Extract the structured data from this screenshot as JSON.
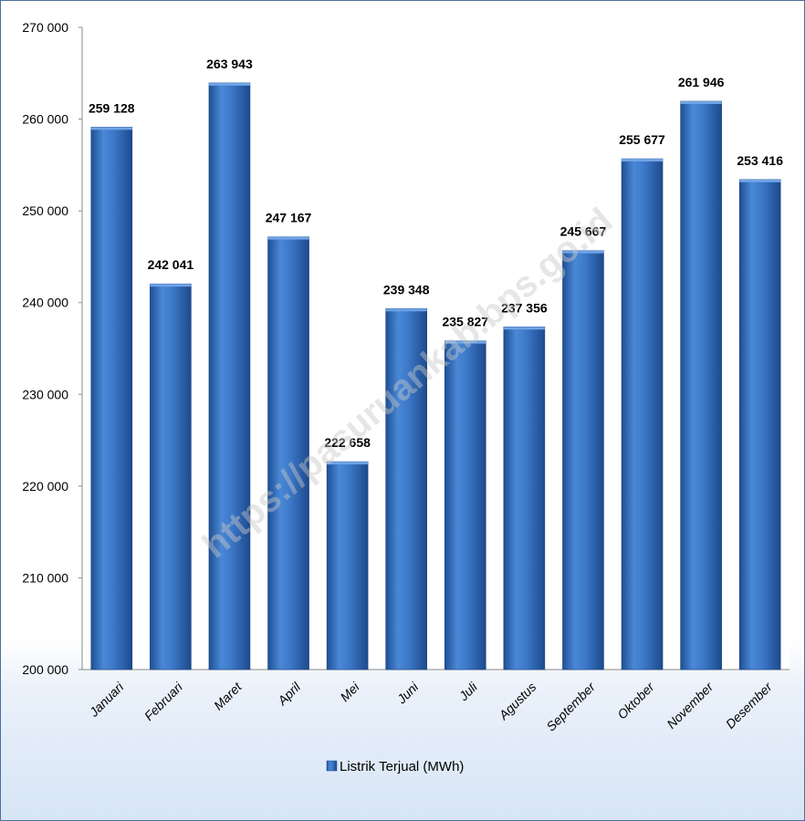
{
  "chart_data": {
    "type": "bar",
    "categories": [
      "Januari",
      "Februari",
      "Maret",
      "April",
      "Mei",
      "Juni",
      "Juli",
      "Agustus",
      "September",
      "Oktober",
      "November",
      "Desember"
    ],
    "series": [
      {
        "name": "Listrik Terjual (MWh)",
        "values": [
          259128,
          242041,
          263943,
          247167,
          222658,
          239348,
          235827,
          237356,
          245667,
          255677,
          261946,
          253416
        ],
        "value_labels": [
          "259 128",
          "242 041",
          "263 943",
          "247 167",
          "222 658",
          "239 348",
          "235 827",
          "237 356",
          "245 667",
          "255 677",
          "261 946",
          "253 416"
        ],
        "color": "#3c78c8"
      }
    ],
    "ylim": [
      200000,
      270000
    ],
    "yticks": [
      200000,
      210000,
      220000,
      230000,
      240000,
      250000,
      260000,
      270000
    ],
    "ytick_labels": [
      "200 000",
      "210 000",
      "220 000",
      "230 000",
      "240 000",
      "250 000",
      "260 000",
      "270 000"
    ],
    "legend": {
      "label": "Listrik Terjual (MWh)",
      "position": "bottom"
    },
    "grid": false,
    "title": "",
    "xlabel": "",
    "ylabel": ""
  },
  "watermark": "https://pasuruankab.bps.go.id",
  "colors": {
    "bar": "#3c78c8",
    "bar_dark": "#1f4f94",
    "frame": "#4a6f9c"
  }
}
